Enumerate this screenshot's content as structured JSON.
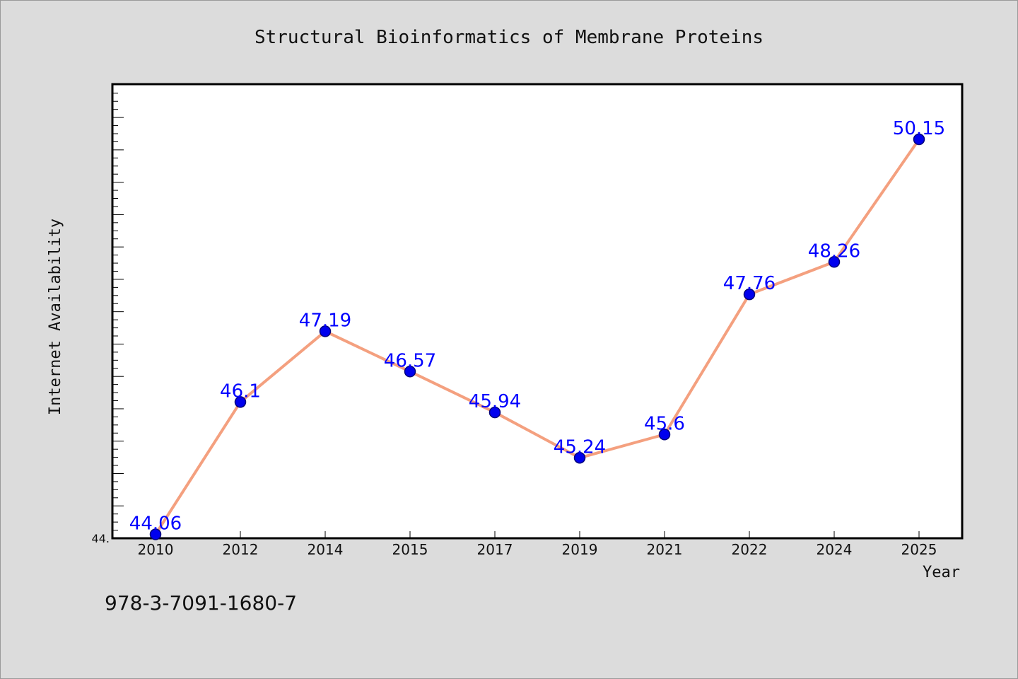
{
  "chart_data": {
    "type": "line",
    "title": "Structural Bioinformatics of Membrane Proteins",
    "xlabel": "Year",
    "ylabel": "Internet Availability",
    "categories": [
      "2010",
      "2012",
      "2014",
      "2015",
      "2017",
      "2019",
      "2021",
      "2022",
      "2024",
      "2025"
    ],
    "series": [
      {
        "values": [
          44.06,
          46.1,
          47.19,
          46.57,
          45.94,
          45.24,
          45.6,
          47.76,
          48.26,
          50.15
        ],
        "data_labels": [
          "44.06",
          "46.1",
          "47.19",
          "46.57",
          "45.94",
          "45.24",
          "45.6",
          "47.76",
          "48.26",
          "50.15"
        ]
      }
    ],
    "ylim": [
      44.0,
      51.0
    ],
    "y_tick_label": "44.",
    "grid": false,
    "colors": {
      "line": "#f4a07f",
      "marker": "#0000ee",
      "marker_edge": "#00007a",
      "data_label": "#0000ff",
      "plot_background": "#ffffff",
      "page_background": "#dcdcdc"
    }
  },
  "footer": {
    "isbn": "978-3-7091-1680-7"
  }
}
